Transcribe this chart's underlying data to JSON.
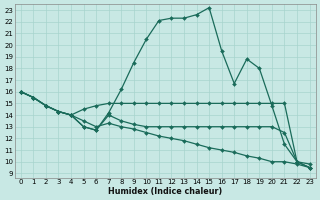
{
  "xlabel": "Humidex (Indice chaleur)",
  "bg_color": "#c8e8e4",
  "line_color": "#1a6b5a",
  "grid_color": "#a8d4ce",
  "xlim_min": -0.5,
  "xlim_max": 23.5,
  "ylim_min": 8.6,
  "ylim_max": 23.5,
  "xticks": [
    0,
    1,
    2,
    3,
    4,
    5,
    6,
    7,
    8,
    9,
    10,
    11,
    12,
    13,
    14,
    15,
    16,
    17,
    18,
    19,
    20,
    21,
    22,
    23
  ],
  "yticks": [
    9,
    10,
    11,
    12,
    13,
    14,
    15,
    16,
    17,
    18,
    19,
    20,
    21,
    22,
    23
  ],
  "lines": [
    [
      16.0,
      15.5,
      14.8,
      14.3,
      14.0,
      13.0,
      12.7,
      14.2,
      16.2,
      18.5,
      20.5,
      22.1,
      22.3,
      22.3,
      22.6,
      23.2,
      19.5,
      16.7,
      18.8,
      18.0,
      14.8,
      11.5,
      10.0,
      9.5
    ],
    [
      16.0,
      15.5,
      14.8,
      14.3,
      14.0,
      14.5,
      14.8,
      15.0,
      15.0,
      15.0,
      15.0,
      15.0,
      15.0,
      15.0,
      15.0,
      15.0,
      15.0,
      15.0,
      15.0,
      15.0,
      15.0,
      15.0,
      10.0,
      9.8
    ],
    [
      16.0,
      15.5,
      14.8,
      14.3,
      14.0,
      13.5,
      13.0,
      13.3,
      13.0,
      12.8,
      12.5,
      12.2,
      12.0,
      11.8,
      11.5,
      11.2,
      11.0,
      10.8,
      10.5,
      10.3,
      10.0,
      10.0,
      9.8,
      9.5
    ],
    [
      16.0,
      15.5,
      14.8,
      14.3,
      14.0,
      13.0,
      12.7,
      14.0,
      13.5,
      13.2,
      13.0,
      13.0,
      13.0,
      13.0,
      13.0,
      13.0,
      13.0,
      13.0,
      13.0,
      13.0,
      13.0,
      12.5,
      10.0,
      9.5
    ]
  ],
  "markersize": 2.0,
  "linewidth": 0.9,
  "xlabel_fontsize": 5.8,
  "tick_fontsize": 5.0
}
